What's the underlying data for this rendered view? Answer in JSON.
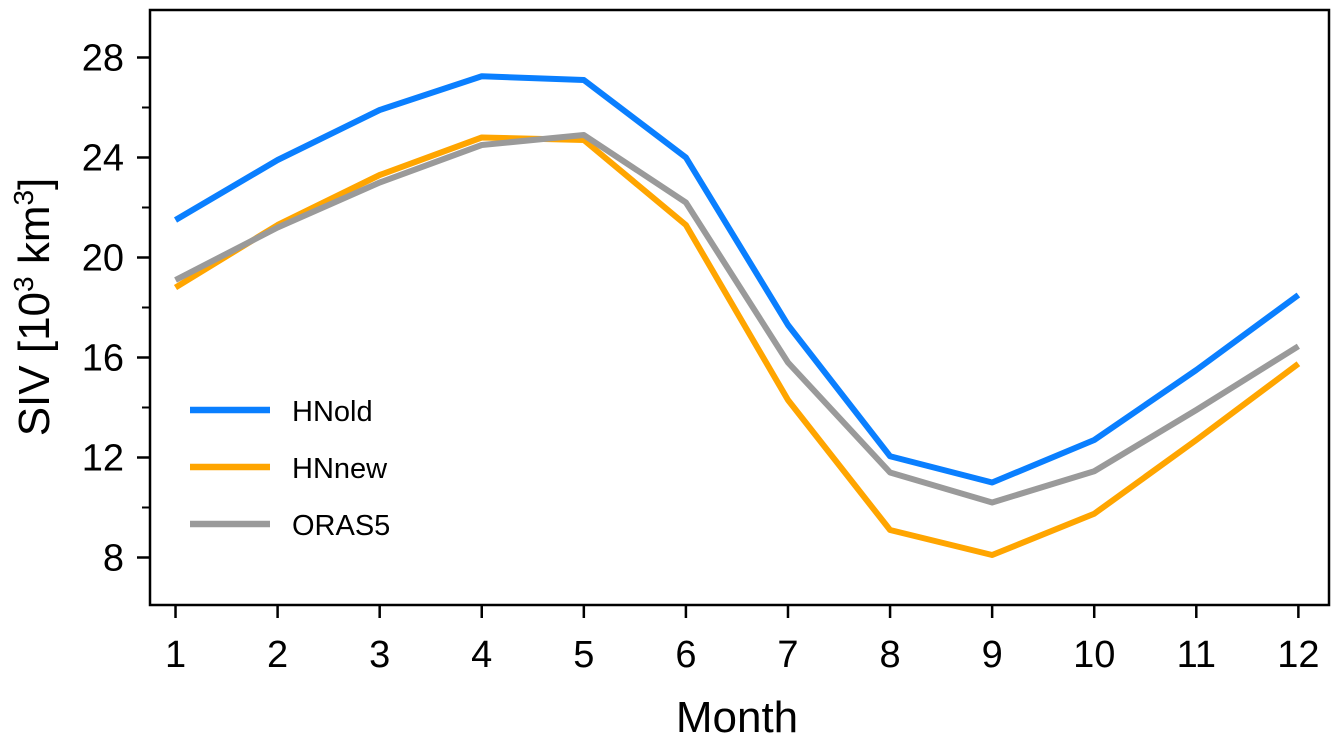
{
  "chart_data": {
    "type": "line",
    "title": "",
    "xlabel": "Month",
    "ylabel": "SIV  [10³ km³]",
    "ylabel_parts": {
      "prefix": "SIV  [10",
      "sup1": "3",
      "mid": " km",
      "sup2": "3",
      "suffix": "]"
    },
    "x": [
      1,
      2,
      3,
      4,
      5,
      6,
      7,
      8,
      9,
      10,
      11,
      12
    ],
    "x_ticks": [
      1,
      2,
      3,
      4,
      5,
      6,
      7,
      8,
      9,
      10,
      11,
      12
    ],
    "y_ticks": [
      8,
      12,
      16,
      20,
      24,
      28
    ],
    "xlim": [
      0.75,
      12.3
    ],
    "ylim": [
      6.1,
      29.9
    ],
    "grid": false,
    "legend_position": "bottom-left",
    "series": [
      {
        "name": "HNold",
        "color": "#0a7fff",
        "values": [
          21.5,
          23.9,
          25.9,
          27.25,
          27.1,
          24.0,
          17.3,
          12.05,
          11.0,
          12.7,
          15.5,
          18.5
        ]
      },
      {
        "name": "HNnew",
        "color": "#ffa500",
        "values": [
          18.8,
          21.3,
          23.3,
          24.8,
          24.7,
          21.3,
          14.3,
          9.1,
          8.1,
          9.75,
          12.7,
          15.75
        ]
      },
      {
        "name": "ORAS5",
        "color": "#9a9a9a",
        "values": [
          19.1,
          21.2,
          23.0,
          24.5,
          24.9,
          22.2,
          15.8,
          11.4,
          10.2,
          11.45,
          13.9,
          16.45
        ]
      }
    ]
  }
}
